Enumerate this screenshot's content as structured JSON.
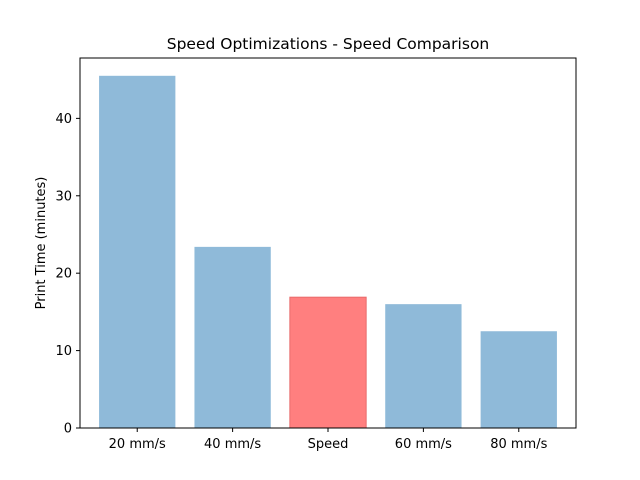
{
  "chart_data": {
    "type": "bar",
    "title": "Speed Optimizations - Speed Comparison",
    "xlabel": "",
    "ylabel": "Print Time (minutes)",
    "categories": [
      "20 mm/s",
      "40 mm/s",
      "Speed",
      "60 mm/s",
      "80 mm/s"
    ],
    "values": [
      45.5,
      23.4,
      16.9,
      16.0,
      12.5
    ],
    "highlight_index": 2,
    "colors": {
      "default": "#8fbad9",
      "highlight": "#ff7f7f",
      "highlight_edge": "#e86a6a"
    },
    "ylim": [
      0,
      47.8
    ],
    "yticks": [
      0,
      10,
      20,
      30,
      40
    ],
    "grid": false
  }
}
